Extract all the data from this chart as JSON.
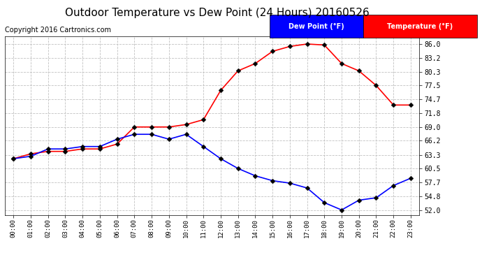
{
  "title": "Outdoor Temperature vs Dew Point (24 Hours) 20160526",
  "copyright": "Copyright 2016 Cartronics.com",
  "x_labels": [
    "00:00",
    "01:00",
    "02:00",
    "03:00",
    "04:00",
    "05:00",
    "06:00",
    "07:00",
    "08:00",
    "09:00",
    "10:00",
    "11:00",
    "12:00",
    "13:00",
    "14:00",
    "15:00",
    "16:00",
    "17:00",
    "18:00",
    "19:00",
    "20:00",
    "21:00",
    "22:00",
    "23:00"
  ],
  "temperature": [
    62.5,
    63.5,
    64.0,
    64.0,
    64.5,
    64.5,
    65.5,
    69.0,
    69.0,
    69.0,
    69.5,
    70.5,
    76.5,
    80.5,
    82.0,
    84.5,
    85.5,
    86.0,
    85.8,
    82.0,
    80.5,
    77.5,
    73.5,
    73.5
  ],
  "dew_point": [
    62.5,
    63.0,
    64.5,
    64.5,
    65.0,
    65.0,
    66.5,
    67.5,
    67.5,
    66.5,
    67.5,
    65.0,
    62.5,
    60.5,
    59.0,
    58.0,
    57.5,
    56.5,
    53.5,
    52.0,
    54.0,
    54.5,
    57.0,
    58.5
  ],
  "temp_color": "#ff0000",
  "dew_color": "#0000ff",
  "plot_bg_color": "#ffffff",
  "fig_bg_color": "#ffffff",
  "grid_color": "#bbbbbb",
  "ylim": [
    51.0,
    87.5
  ],
  "yticks": [
    52.0,
    54.8,
    57.7,
    60.5,
    63.3,
    66.2,
    69.0,
    71.8,
    74.7,
    77.5,
    80.3,
    83.2,
    86.0
  ],
  "legend_dew_bg": "#0000ff",
  "legend_temp_bg": "#ff0000",
  "title_fontsize": 11,
  "copyright_fontsize": 7,
  "markersize": 3.5,
  "linewidth": 1.2
}
